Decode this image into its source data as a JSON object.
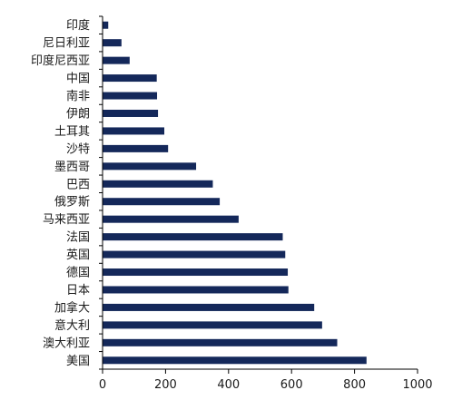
{
  "chart_data": {
    "type": "bar",
    "orientation": "horizontal",
    "title": "",
    "xlabel": "",
    "ylabel": "",
    "categories": [
      "美国",
      "澳大利亚",
      "意大利",
      "加拿大",
      "日本",
      "德国",
      "英国",
      "法国",
      "马来西亚",
      "俄罗斯",
      "巴西",
      "墨西哥",
      "沙特",
      "土耳其",
      "伊朗",
      "南非",
      "中国",
      "印度尼西亚",
      "尼日利亚",
      "印度"
    ],
    "values": [
      838,
      745,
      697,
      672,
      590,
      588,
      580,
      572,
      432,
      372,
      350,
      297,
      208,
      196,
      176,
      173,
      172,
      86,
      60,
      18
    ],
    "xlim": [
      0,
      1000
    ],
    "xticks": [
      0,
      200,
      400,
      600,
      800,
      1000
    ],
    "grid": false,
    "legend": "none",
    "colors": {
      "bar": "#14285a",
      "axis": "#000000",
      "text": "#1a1a1a"
    }
  }
}
